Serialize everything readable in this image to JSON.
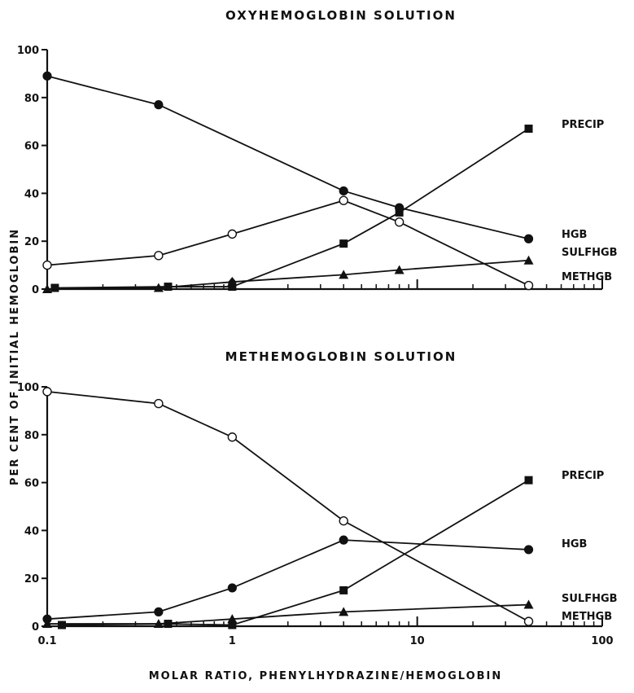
{
  "figure": {
    "xlabel": "MOLAR RATIO, PHENYLHYDRAZINE/HEMOGLOBIN",
    "ylabel": "PER CENT OF INITIAL HEMOGLOBIN"
  },
  "chart_data": [
    {
      "type": "line",
      "title": "OXYHEMOGLOBIN SOLUTION",
      "xscale": "log",
      "xlim": [
        0.1,
        100
      ],
      "ylim": [
        0,
        100
      ],
      "yticks": [
        0,
        20,
        40,
        60,
        80,
        100
      ],
      "xticks": [
        0.1,
        1,
        10,
        100
      ],
      "xtick_labels": [
        "",
        "",
        "",
        ""
      ],
      "ytick_labels": [
        "0",
        "20",
        "40",
        "60",
        "80",
        "100"
      ],
      "series": [
        {
          "name": "PRECIP",
          "marker": "square-filled",
          "x": [
            0.11,
            0.45,
            1,
            4,
            8,
            40
          ],
          "y": [
            0.5,
            1,
            1,
            19,
            32,
            67
          ]
        },
        {
          "name": "HGB",
          "marker": "circle-filled",
          "x": [
            0.1,
            0.4,
            4,
            8,
            40
          ],
          "y": [
            89,
            77,
            41,
            34,
            21
          ]
        },
        {
          "name": "",
          "marker": "circle-open",
          "x": [
            0.1,
            0.4,
            1,
            4,
            8,
            40
          ],
          "y": [
            10,
            14,
            23,
            37,
            28,
            1.5
          ]
        },
        {
          "name": "SULFHGB",
          "marker": "triangle-filled",
          "x": [
            0.1,
            0.4,
            1,
            4,
            8,
            40
          ],
          "y": [
            0,
            0.5,
            3,
            6,
            8,
            12
          ]
        },
        {
          "name": "METHGB",
          "marker": "diamond-filled",
          "x": [
            1
          ],
          "y": [
            3
          ]
        }
      ]
    },
    {
      "type": "line",
      "title": "METHEMOGLOBIN SOLUTION",
      "xscale": "log",
      "xlim": [
        0.1,
        100
      ],
      "ylim": [
        0,
        100
      ],
      "yticks": [
        0,
        20,
        40,
        60,
        80,
        100
      ],
      "xticks": [
        0.1,
        1,
        10,
        100
      ],
      "xtick_labels": [
        "0.1",
        "1",
        "10",
        "100"
      ],
      "ytick_labels": [
        "0",
        "20",
        "40",
        "60",
        "80",
        "100"
      ],
      "series": [
        {
          "name": "PRECIP",
          "marker": "square-filled",
          "x": [
            0.12,
            0.45,
            1,
            4,
            40
          ],
          "y": [
            0.5,
            1,
            0.5,
            15,
            61
          ]
        },
        {
          "name": "HGB",
          "marker": "circle-filled",
          "x": [
            0.1,
            0.4,
            1,
            4,
            40
          ],
          "y": [
            3,
            6,
            16,
            36,
            32
          ]
        },
        {
          "name": "METHGB",
          "marker": "circle-open",
          "x": [
            0.1,
            0.4,
            1,
            4,
            40
          ],
          "y": [
            98,
            93,
            79,
            44,
            2
          ]
        },
        {
          "name": "SULFHGB",
          "marker": "triangle-filled",
          "x": [
            0.1,
            0.4,
            1,
            4,
            40
          ],
          "y": [
            1,
            1,
            3,
            6,
            9
          ]
        }
      ]
    }
  ]
}
